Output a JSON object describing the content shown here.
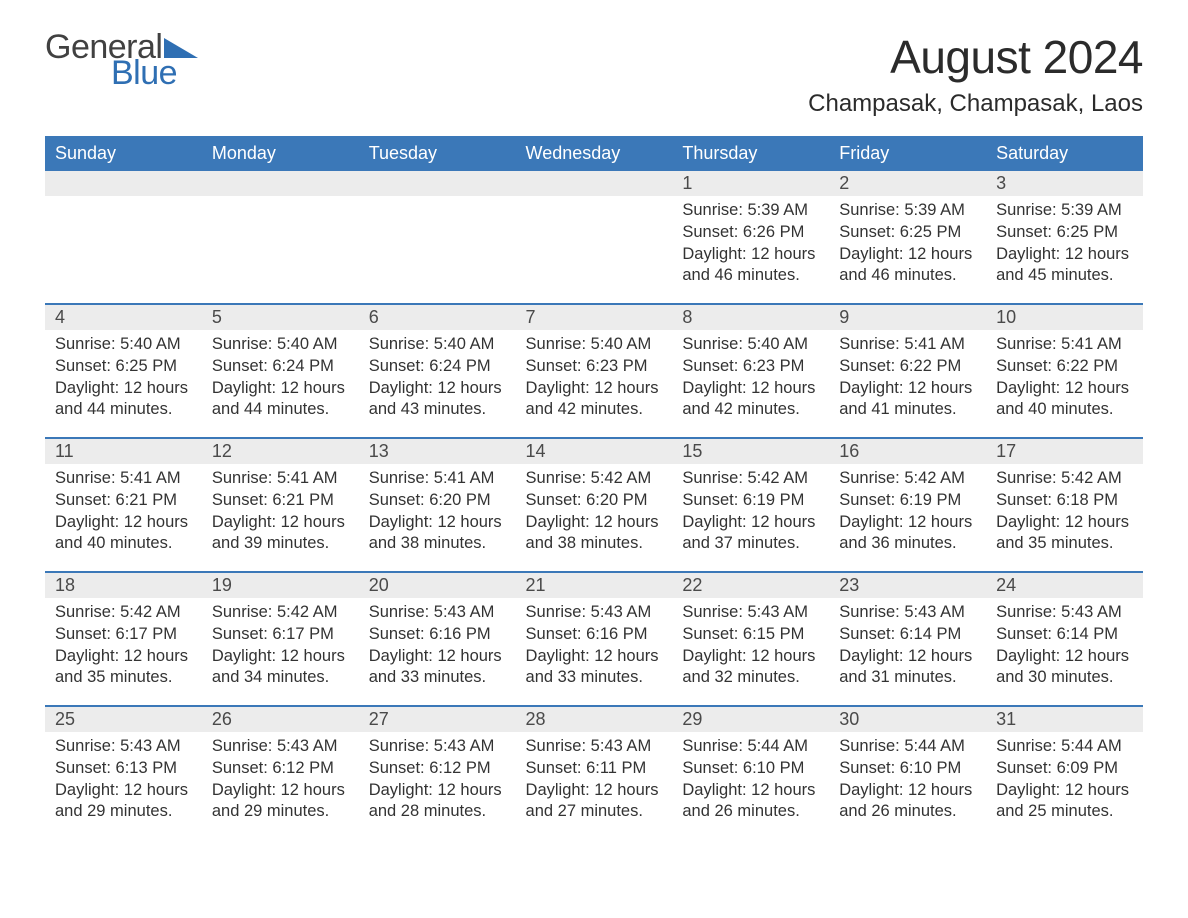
{
  "logo": {
    "text1": "General",
    "text2": "Blue",
    "tri_color": "#2f6fb3"
  },
  "title": "August 2024",
  "location": "Champasak, Champasak, Laos",
  "header_bg": "#3b78b8",
  "daynum_bg": "#ececec",
  "text_color": "#333333",
  "weekdays": [
    "Sunday",
    "Monday",
    "Tuesday",
    "Wednesday",
    "Thursday",
    "Friday",
    "Saturday"
  ],
  "weeks": [
    [
      null,
      null,
      null,
      null,
      {
        "n": "1",
        "sr": "5:39 AM",
        "ss": "6:26 PM",
        "dl": "12 hours and 46 minutes."
      },
      {
        "n": "2",
        "sr": "5:39 AM",
        "ss": "6:25 PM",
        "dl": "12 hours and 46 minutes."
      },
      {
        "n": "3",
        "sr": "5:39 AM",
        "ss": "6:25 PM",
        "dl": "12 hours and 45 minutes."
      }
    ],
    [
      {
        "n": "4",
        "sr": "5:40 AM",
        "ss": "6:25 PM",
        "dl": "12 hours and 44 minutes."
      },
      {
        "n": "5",
        "sr": "5:40 AM",
        "ss": "6:24 PM",
        "dl": "12 hours and 44 minutes."
      },
      {
        "n": "6",
        "sr": "5:40 AM",
        "ss": "6:24 PM",
        "dl": "12 hours and 43 minutes."
      },
      {
        "n": "7",
        "sr": "5:40 AM",
        "ss": "6:23 PM",
        "dl": "12 hours and 42 minutes."
      },
      {
        "n": "8",
        "sr": "5:40 AM",
        "ss": "6:23 PM",
        "dl": "12 hours and 42 minutes."
      },
      {
        "n": "9",
        "sr": "5:41 AM",
        "ss": "6:22 PM",
        "dl": "12 hours and 41 minutes."
      },
      {
        "n": "10",
        "sr": "5:41 AM",
        "ss": "6:22 PM",
        "dl": "12 hours and 40 minutes."
      }
    ],
    [
      {
        "n": "11",
        "sr": "5:41 AM",
        "ss": "6:21 PM",
        "dl": "12 hours and 40 minutes."
      },
      {
        "n": "12",
        "sr": "5:41 AM",
        "ss": "6:21 PM",
        "dl": "12 hours and 39 minutes."
      },
      {
        "n": "13",
        "sr": "5:41 AM",
        "ss": "6:20 PM",
        "dl": "12 hours and 38 minutes."
      },
      {
        "n": "14",
        "sr": "5:42 AM",
        "ss": "6:20 PM",
        "dl": "12 hours and 38 minutes."
      },
      {
        "n": "15",
        "sr": "5:42 AM",
        "ss": "6:19 PM",
        "dl": "12 hours and 37 minutes."
      },
      {
        "n": "16",
        "sr": "5:42 AM",
        "ss": "6:19 PM",
        "dl": "12 hours and 36 minutes."
      },
      {
        "n": "17",
        "sr": "5:42 AM",
        "ss": "6:18 PM",
        "dl": "12 hours and 35 minutes."
      }
    ],
    [
      {
        "n": "18",
        "sr": "5:42 AM",
        "ss": "6:17 PM",
        "dl": "12 hours and 35 minutes."
      },
      {
        "n": "19",
        "sr": "5:42 AM",
        "ss": "6:17 PM",
        "dl": "12 hours and 34 minutes."
      },
      {
        "n": "20",
        "sr": "5:43 AM",
        "ss": "6:16 PM",
        "dl": "12 hours and 33 minutes."
      },
      {
        "n": "21",
        "sr": "5:43 AM",
        "ss": "6:16 PM",
        "dl": "12 hours and 33 minutes."
      },
      {
        "n": "22",
        "sr": "5:43 AM",
        "ss": "6:15 PM",
        "dl": "12 hours and 32 minutes."
      },
      {
        "n": "23",
        "sr": "5:43 AM",
        "ss": "6:14 PM",
        "dl": "12 hours and 31 minutes."
      },
      {
        "n": "24",
        "sr": "5:43 AM",
        "ss": "6:14 PM",
        "dl": "12 hours and 30 minutes."
      }
    ],
    [
      {
        "n": "25",
        "sr": "5:43 AM",
        "ss": "6:13 PM",
        "dl": "12 hours and 29 minutes."
      },
      {
        "n": "26",
        "sr": "5:43 AM",
        "ss": "6:12 PM",
        "dl": "12 hours and 29 minutes."
      },
      {
        "n": "27",
        "sr": "5:43 AM",
        "ss": "6:12 PM",
        "dl": "12 hours and 28 minutes."
      },
      {
        "n": "28",
        "sr": "5:43 AM",
        "ss": "6:11 PM",
        "dl": "12 hours and 27 minutes."
      },
      {
        "n": "29",
        "sr": "5:44 AM",
        "ss": "6:10 PM",
        "dl": "12 hours and 26 minutes."
      },
      {
        "n": "30",
        "sr": "5:44 AM",
        "ss": "6:10 PM",
        "dl": "12 hours and 26 minutes."
      },
      {
        "n": "31",
        "sr": "5:44 AM",
        "ss": "6:09 PM",
        "dl": "12 hours and 25 minutes."
      }
    ]
  ],
  "labels": {
    "sunrise": "Sunrise: ",
    "sunset": "Sunset: ",
    "daylight": "Daylight: "
  }
}
